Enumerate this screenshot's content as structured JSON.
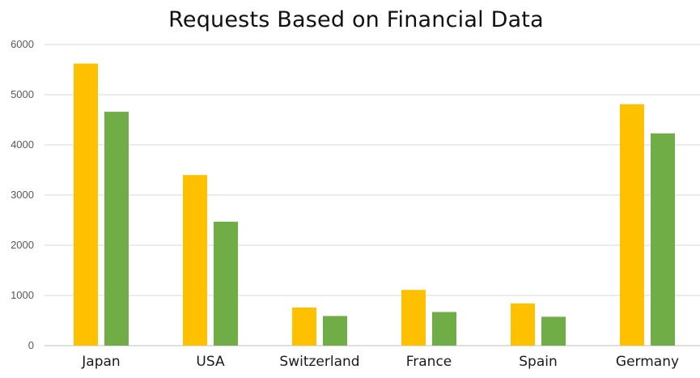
{
  "chart_data": {
    "type": "bar",
    "title": "Requests Based on Financial Data",
    "xlabel": "",
    "ylabel": "",
    "categories": [
      "Japan",
      "USA",
      "Switzerland",
      "France",
      "Spain",
      "Germany"
    ],
    "series": [
      {
        "color": "#FFC000",
        "values": [
          5620,
          3400,
          760,
          1110,
          840,
          4810
        ]
      },
      {
        "color": "#70AD47",
        "values": [
          4660,
          2470,
          590,
          670,
          575,
          4230
        ]
      }
    ],
    "ylim": [
      0,
      6000
    ],
    "yticks": [
      0,
      1000,
      2000,
      3000,
      4000,
      5000,
      6000
    ],
    "grid": true,
    "legend": "none"
  }
}
